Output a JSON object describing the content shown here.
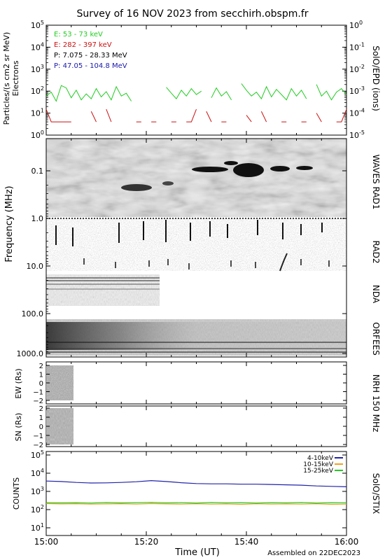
{
  "header": {
    "title": "Survey of 16 NOV 2023 from secchirh.obspm.fr",
    "footer": "Assembled on 22DEC2023"
  },
  "time_axis": {
    "label": "Time (UT)",
    "ticks": [
      "15:00",
      "15:20",
      "15:40",
      "16:00"
    ]
  },
  "colors": {
    "e_low": "#22cc22",
    "e_high": "#cc1111",
    "p_low": "#000000",
    "p_high": "#1a1aaa",
    "stix_4_10": "#2222aa",
    "stix_10_15": "#f0a020",
    "stix_15_25": "#22cc22"
  },
  "panels": {
    "epd": {
      "ylabel_line1": "Particles/(s cm2 sr MeV)",
      "ylabel_line2": "Electrons",
      "right_label": "SolO/EPD (ions)",
      "left_ticks": [
        "10^0",
        "10^1",
        "10^2",
        "10^3",
        "10^4",
        "10^5"
      ],
      "right_ticks": [
        "10^-5",
        "10^-4",
        "10^-3",
        "10^-2",
        "10^-1",
        "10^0"
      ]
    },
    "radio": {
      "ylabel": "Frequency (MHz)",
      "freq_ticks": [
        "0.1",
        "1.0",
        "10.0",
        "100.0",
        "1000.0"
      ],
      "instruments": [
        "WAVES RAD1",
        "RAD2",
        "NDA",
        "ORFEES"
      ]
    },
    "nrh": {
      "right_label": "NRH 150 MHz",
      "ew_label": "EW (Rs)",
      "sn_label": "SN (Rs)",
      "ticks": [
        "2",
        "1",
        "0",
        "−1",
        "−2"
      ]
    },
    "stix": {
      "ylabel": "COUNTS",
      "right_label": "SolO/STIX",
      "ticks": [
        "10^1",
        "10^2",
        "10^3",
        "10^4",
        "10^5"
      ]
    }
  },
  "chart_data": [
    {
      "type": "line",
      "name": "SolO/EPD",
      "log_scale": true,
      "ylim": [
        1,
        100000
      ],
      "y2lim": [
        1e-05,
        1
      ],
      "x_range": [
        "15:00",
        "16:00"
      ],
      "legend_position": "top-left",
      "series": [
        {
          "name": "E: 53 - 73 keV",
          "axis": "left",
          "color": "#22cc22",
          "x": [
            "15:00",
            "15:01",
            "15:02",
            "15:03",
            "15:04",
            "15:05",
            "15:06",
            "15:07",
            "15:08",
            "15:09",
            "15:10",
            "15:11",
            "15:12",
            "15:13",
            "15:14",
            "15:15",
            "15:16",
            "15:17",
            "15:18",
            "15:19",
            "15:20",
            "15:21",
            "15:22",
            "15:23",
            "15:24",
            "15:25",
            "15:26",
            "15:27",
            "15:28",
            "15:29",
            "15:30",
            "15:31",
            "15:32",
            "15:33",
            "15:34",
            "15:35",
            "15:36",
            "15:37",
            "15:38",
            "15:39",
            "15:40",
            "15:41",
            "15:42",
            "15:43",
            "15:44",
            "15:45",
            "15:46",
            "15:47",
            "15:48",
            "15:49",
            "15:50",
            "15:51",
            "15:52",
            "15:53",
            "15:54",
            "15:55",
            "15:56",
            "15:57",
            "15:58",
            "15:59",
            "16:00"
          ],
          "values": [
            60,
            90,
            35,
            180,
            140,
            50,
            110,
            40,
            75,
            45,
            130,
            55,
            95,
            40,
            160,
            60,
            80,
            35,
            null,
            null,
            null,
            null,
            null,
            null,
            150,
            80,
            45,
            110,
            60,
            130,
            70,
            100,
            null,
            50,
            140,
            60,
            95,
            40,
            null,
            220,
            110,
            60,
            90,
            45,
            160,
            55,
            120,
            70,
            40,
            130,
            60,
            110,
            45,
            null,
            200,
            60,
            100,
            40,
            90,
            130,
            70
          ]
        },
        {
          "name": "E: 282 - 397 keV",
          "axis": "left",
          "color": "#cc1111",
          "x": [
            "15:00",
            "15:01",
            "15:02",
            "15:03",
            "15:04",
            "15:05",
            "15:06",
            "15:07",
            "15:08",
            "15:09",
            "15:10",
            "15:11",
            "15:12",
            "15:13",
            "15:14",
            "15:15",
            "15:16",
            "15:17",
            "15:18",
            "15:19",
            "15:20",
            "15:21",
            "15:22",
            "15:23",
            "15:24",
            "15:25",
            "15:26",
            "15:27",
            "15:28",
            "15:29",
            "15:30",
            "15:31",
            "15:32",
            "15:33",
            "15:34",
            "15:35",
            "15:36",
            "15:37",
            "15:38",
            "15:39",
            "15:40",
            "15:41",
            "15:42",
            "15:43",
            "15:44",
            "15:45",
            "15:46",
            "15:47",
            "15:48",
            "15:49",
            "15:50",
            "15:51",
            "15:52",
            "15:53",
            "15:54",
            "15:55",
            "15:56",
            "15:57",
            "15:58",
            "15:59",
            "16:00"
          ],
          "values": [
            15,
            4,
            4,
            4,
            4,
            4,
            null,
            null,
            null,
            12,
            4,
            null,
            15,
            4,
            null,
            null,
            null,
            null,
            4,
            4,
            null,
            4,
            4,
            null,
            null,
            4,
            4,
            null,
            4,
            4,
            15,
            null,
            12,
            4,
            null,
            4,
            4,
            null,
            null,
            null,
            8,
            4,
            null,
            12,
            4,
            null,
            null,
            4,
            4,
            null,
            null,
            4,
            4,
            null,
            10,
            4,
            null,
            null,
            4,
            4,
            15
          ]
        },
        {
          "name": "P: 7.075 - 28.33 MeV",
          "axis": "right",
          "color": "#000000",
          "x": [],
          "values": []
        },
        {
          "name": "P: 47.05 - 104.8 MeV",
          "axis": "right",
          "color": "#1a1aaa",
          "x": [],
          "values": []
        }
      ]
    },
    {
      "type": "heatmap",
      "name": "Radio dynamic spectrum",
      "log_scale": true,
      "ylim": [
        0.02,
        2000
      ],
      "x_range": [
        "15:00",
        "16:00"
      ],
      "bands": [
        {
          "name": "WAVES RAD1",
          "freq_mhz": [
            0.02,
            1.0
          ],
          "coverage": [
            "15:00",
            "16:00"
          ]
        },
        {
          "name": "RAD2",
          "freq_mhz": [
            1.0,
            14.0
          ],
          "coverage": [
            "15:00",
            "16:00"
          ]
        },
        {
          "name": "NDA",
          "freq_mhz": [
            14.0,
            80.0
          ],
          "coverage": [
            "15:00",
            "15:22"
          ]
        },
        {
          "name": "ORFEES",
          "freq_mhz": [
            140.0,
            1000.0
          ],
          "coverage": [
            "15:00",
            "16:00"
          ]
        }
      ]
    },
    {
      "type": "heatmap",
      "name": "NRH 150 MHz",
      "ylim": [
        -2.5,
        2.5
      ],
      "x_range": [
        "15:00",
        "16:00"
      ],
      "coverage": [
        "15:00",
        "15:05"
      ],
      "rows": [
        "EW (Rs)",
        "SN (Rs)"
      ]
    },
    {
      "type": "line",
      "name": "SolO/STIX",
      "log_scale": true,
      "ylim": [
        1,
        100000
      ],
      "x_range": [
        "15:00",
        "16:00"
      ],
      "legend_position": "top-right",
      "series": [
        {
          "name": "4-10keV",
          "color": "#2222aa",
          "x": [
            "15:00",
            "15:03",
            "15:06",
            "15:09",
            "15:12",
            "15:15",
            "15:18",
            "15:21",
            "15:24",
            "15:27",
            "15:30",
            "15:33",
            "15:36",
            "15:39",
            "15:42",
            "15:45",
            "15:48",
            "15:51",
            "15:54",
            "15:57",
            "16:00"
          ],
          "values": [
            3700,
            3500,
            3100,
            2900,
            2950,
            3100,
            3400,
            3900,
            3500,
            3000,
            2700,
            2600,
            2600,
            2500,
            2500,
            2400,
            2300,
            2200,
            2000,
            1900,
            1800
          ]
        },
        {
          "name": "10-15keV",
          "color": "#f0a020",
          "x": [
            "15:00",
            "15:03",
            "15:06",
            "15:09",
            "15:12",
            "15:15",
            "15:18",
            "15:21",
            "15:24",
            "15:27",
            "15:30",
            "15:33",
            "15:36",
            "15:39",
            "15:42",
            "15:45",
            "15:48",
            "15:51",
            "15:54",
            "15:57",
            "16:00"
          ],
          "values": [
            215,
            205,
            210,
            200,
            205,
            210,
            200,
            215,
            205,
            200,
            210,
            200,
            205,
            195,
            210,
            200,
            205,
            200,
            210,
            195,
            200
          ]
        },
        {
          "name": "15-25keV",
          "color": "#22cc22",
          "x": [
            "15:00",
            "15:03",
            "15:06",
            "15:09",
            "15:12",
            "15:15",
            "15:18",
            "15:21",
            "15:24",
            "15:27",
            "15:30",
            "15:33",
            "15:36",
            "15:39",
            "15:42",
            "15:45",
            "15:48",
            "15:51",
            "15:54",
            "15:57",
            "16:00"
          ],
          "values": [
            240,
            235,
            240,
            230,
            245,
            235,
            240,
            250,
            235,
            240,
            230,
            245,
            235,
            240,
            230,
            240,
            235,
            245,
            230,
            240,
            235
          ]
        }
      ]
    }
  ]
}
